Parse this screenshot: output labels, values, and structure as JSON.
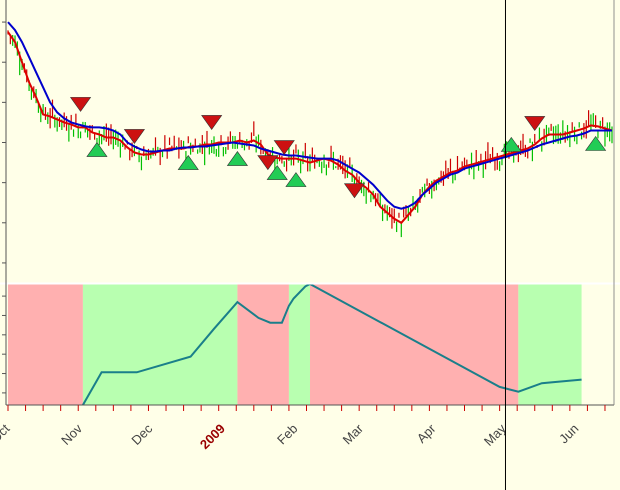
{
  "chart_data": [
    {
      "type": "line",
      "panel": "price",
      "note": "daily OHLC bars (green up, red down) with two moving averages and buy/sell triangle markers",
      "x_ticks": [
        {
          "label": "Oct",
          "day": 0,
          "highlight": false
        },
        {
          "label": "Nov",
          "day": 31,
          "highlight": false
        },
        {
          "label": "Dec",
          "day": 61,
          "highlight": false
        },
        {
          "label": "2009",
          "day": 92,
          "highlight": true
        },
        {
          "label": "Feb",
          "day": 123,
          "highlight": false
        },
        {
          "label": "Mar",
          "day": 151,
          "highlight": false
        },
        {
          "label": "Apr",
          "day": 182,
          "highlight": false
        },
        {
          "label": "May",
          "day": 212,
          "highlight": false
        },
        {
          "label": "Jun",
          "day": 243,
          "highlight": false
        }
      ],
      "x_range_days": [
        0,
        258
      ],
      "y_range": [
        0,
        280
      ],
      "cursor_day": 212.5,
      "colors": {
        "up_bar": "#00c000",
        "down_bar": "#cc0000",
        "fast_ma": "#dd0000",
        "slow_ma": "#0000cc",
        "buy_marker": "#22cc55",
        "sell_marker": "#cc1111",
        "background": "#ffffe8"
      },
      "series": [
        {
          "name": "",
          "role": "fast_ma",
          "x": [
            0,
            3,
            6,
            9,
            12,
            15,
            18,
            21,
            24,
            27,
            30,
            33,
            36,
            39,
            42,
            45,
            48,
            51,
            54,
            57,
            60,
            63,
            66,
            69,
            72,
            75,
            78,
            81,
            84,
            87,
            90,
            93,
            96,
            99,
            102,
            105,
            108,
            111,
            114,
            117,
            120,
            123,
            126,
            129,
            132,
            135,
            138,
            141,
            144,
            147,
            150,
            153,
            156,
            159,
            162,
            165,
            168,
            171,
            174,
            177,
            180,
            183,
            186,
            189,
            192,
            195,
            198,
            201,
            204,
            207,
            210,
            213,
            216,
            219,
            222,
            225,
            228,
            231,
            234,
            237,
            240,
            243,
            246,
            249,
            252,
            255,
            258
          ],
          "y": [
            250,
            240,
            220,
            200,
            185,
            168,
            166,
            163,
            160,
            158,
            155,
            155,
            150,
            148,
            145,
            145,
            142,
            135,
            130,
            128,
            128,
            130,
            132,
            134,
            134,
            134,
            136,
            136,
            138,
            138,
            140,
            140,
            140,
            142,
            140,
            142,
            138,
            128,
            125,
            124,
            124,
            124,
            122,
            120,
            122,
            124,
            122,
            118,
            112,
            108,
            100,
            95,
            88,
            76,
            70,
            64,
            60,
            68,
            76,
            88,
            96,
            102,
            106,
            110,
            112,
            116,
            118,
            120,
            122,
            124,
            126,
            128,
            130,
            132,
            134,
            138,
            144,
            148,
            148,
            148,
            150,
            152,
            154,
            157,
            156,
            154,
            152
          ]
        },
        {
          "name": "",
          "role": "slow_ma",
          "x": [
            0,
            3,
            6,
            9,
            12,
            15,
            18,
            21,
            24,
            27,
            30,
            33,
            36,
            39,
            42,
            45,
            48,
            51,
            54,
            57,
            60,
            63,
            66,
            69,
            72,
            75,
            78,
            81,
            84,
            87,
            90,
            93,
            96,
            99,
            102,
            105,
            108,
            111,
            114,
            117,
            120,
            123,
            126,
            129,
            132,
            135,
            138,
            141,
            144,
            147,
            150,
            153,
            156,
            159,
            162,
            165,
            168,
            171,
            174,
            177,
            180,
            183,
            186,
            189,
            192,
            195,
            198,
            201,
            204,
            207,
            210,
            213,
            216,
            219,
            222,
            225,
            228,
            231,
            234,
            237,
            240,
            243,
            246,
            249,
            252,
            255,
            258
          ],
          "y": [
            260,
            252,
            240,
            225,
            210,
            195,
            180,
            170,
            164,
            160,
            158,
            156,
            155,
            155,
            154,
            152,
            148,
            140,
            136,
            133,
            131,
            131,
            132,
            132,
            134,
            135,
            135,
            136,
            136,
            137,
            138,
            139,
            140,
            139,
            138,
            137,
            134,
            132,
            130,
            128,
            127,
            127,
            126,
            125,
            124,
            124,
            124,
            122,
            118,
            114,
            110,
            104,
            98,
            90,
            82,
            76,
            74,
            76,
            80,
            88,
            94,
            100,
            104,
            108,
            110,
            114,
            116,
            118,
            120,
            122,
            124,
            126,
            128,
            130,
            132,
            135,
            138,
            140,
            142,
            144,
            146,
            147,
            149,
            152,
            152,
            152,
            152
          ]
        }
      ],
      "markers": [
        {
          "kind": "sell",
          "day": 31,
          "value": 178
        },
        {
          "kind": "buy",
          "day": 38,
          "value": 133
        },
        {
          "kind": "sell",
          "day": 54,
          "value": 146
        },
        {
          "kind": "buy",
          "day": 77,
          "value": 120
        },
        {
          "kind": "sell",
          "day": 87,
          "value": 160
        },
        {
          "kind": "buy",
          "day": 98,
          "value": 124
        },
        {
          "kind": "sell",
          "day": 111,
          "value": 120
        },
        {
          "kind": "buy",
          "day": 115,
          "value": 110
        },
        {
          "kind": "sell",
          "day": 118,
          "value": 135
        },
        {
          "kind": "buy",
          "day": 123,
          "value": 103
        },
        {
          "kind": "sell",
          "day": 148,
          "value": 92
        },
        {
          "kind": "buy",
          "day": 215,
          "value": 138
        },
        {
          "kind": "sell",
          "day": 225,
          "value": 159
        },
        {
          "kind": "buy",
          "day": 251,
          "value": 139
        }
      ]
    },
    {
      "type": "area",
      "panel": "oscillator",
      "x_range_days": [
        0,
        258
      ],
      "y_range": [
        0,
        100
      ],
      "colors": {
        "bullish": "#b8ffb0",
        "bearish": "#ffb0b0",
        "line": "#1a7f8a"
      },
      "regions": [
        {
          "state": "bearish",
          "from_day": 0,
          "to_day": 32
        },
        {
          "state": "bullish",
          "from_day": 32,
          "to_day": 98
        },
        {
          "state": "bearish",
          "from_day": 98,
          "to_day": 120
        },
        {
          "state": "bullish",
          "from_day": 120,
          "to_day": 129
        },
        {
          "state": "bearish",
          "from_day": 129,
          "to_day": 218
        },
        {
          "state": "bullish",
          "from_day": 218,
          "to_day": 245
        }
      ],
      "series": [
        {
          "name": "",
          "x": [
            32,
            40,
            55,
            78,
            88,
            98,
            107,
            112,
            117,
            120,
            122,
            127,
            129,
            210,
            218,
            228,
            245
          ],
          "y": [
            0,
            27,
            27,
            40,
            63,
            85,
            72,
            68,
            68,
            82,
            88,
            98,
            100,
            15,
            11,
            18,
            21
          ]
        }
      ]
    }
  ]
}
